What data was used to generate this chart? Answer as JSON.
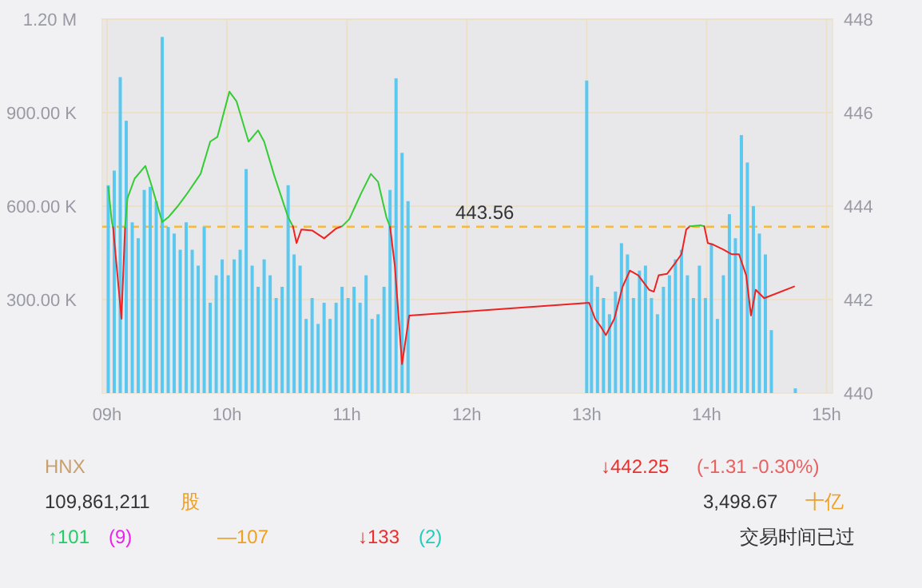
{
  "chart_data": {
    "type": "bar",
    "xlim": [
      8.96,
      15.05
    ],
    "xticks": [
      {
        "value": 9,
        "label": "09h"
      },
      {
        "value": 10,
        "label": "10h"
      },
      {
        "value": 11,
        "label": "11h"
      },
      {
        "value": 12,
        "label": "12h"
      },
      {
        "value": 13,
        "label": "13h"
      },
      {
        "value": 14,
        "label": "14h"
      },
      {
        "value": 15,
        "label": "15h"
      }
    ],
    "ylim": [
      0,
      1200000
    ],
    "yticks": [
      {
        "value": 300000,
        "label": "300.00 K"
      },
      {
        "value": 600000,
        "label": "600.00 K"
      },
      {
        "value": 900000,
        "label": "900.00 K"
      },
      {
        "value": 1200000,
        "label": "1.20 M"
      }
    ],
    "y2lim": [
      440,
      448
    ],
    "y2ticks": [
      440,
      442,
      444,
      446,
      448
    ],
    "grid": true,
    "series": [
      {
        "axis": "y",
        "color": "#5bc8f0",
        "x": [
          9.01,
          9.06,
          9.11,
          9.16,
          9.21,
          9.26,
          9.31,
          9.36,
          9.41,
          9.46,
          9.51,
          9.56,
          9.61,
          9.66,
          9.71,
          9.76,
          9.81,
          9.86,
          9.91,
          9.96,
          10.01,
          10.06,
          10.11,
          10.16,
          10.21,
          10.26,
          10.31,
          10.36,
          10.41,
          10.46,
          10.51,
          10.56,
          10.61,
          10.66,
          10.71,
          10.76,
          10.81,
          10.86,
          10.91,
          10.96,
          11.01,
          11.06,
          11.11,
          11.16,
          11.21,
          11.26,
          11.31,
          11.36,
          11.41,
          11.46,
          11.51,
          13.0,
          13.04,
          13.09,
          13.14,
          13.19,
          13.24,
          13.29,
          13.34,
          13.39,
          13.44,
          13.49,
          13.54,
          13.59,
          13.64,
          13.69,
          13.74,
          13.79,
          13.84,
          13.89,
          13.94,
          13.99,
          14.04,
          14.09,
          14.14,
          14.19,
          14.24,
          14.29,
          14.34,
          14.39,
          14.44,
          14.49,
          14.54,
          14.74
        ],
        "values": [
          667000,
          714000,
          1014000,
          874000,
          548000,
          497000,
          652000,
          662000,
          616000,
          1143000,
          533000,
          512000,
          460000,
          548000,
          460000,
          409000,
          533000,
          290000,
          378000,
          429000,
          378000,
          429000,
          460000,
          719000,
          409000,
          341000,
          429000,
          378000,
          305000,
          341000,
          667000,
          445000,
          409000,
          238000,
          305000,
          222000,
          290000,
          238000,
          290000,
          341000,
          305000,
          341000,
          290000,
          378000,
          238000,
          253000,
          341000,
          652000,
          1010000,
          771000,
          616000,
          1003000,
          378000,
          341000,
          305000,
          253000,
          326000,
          481000,
          445000,
          305000,
          393000,
          409000,
          305000,
          253000,
          341000,
          378000,
          429000,
          460000,
          378000,
          305000,
          409000,
          305000,
          481000,
          238000,
          378000,
          574000,
          497000,
          828000,
          740000,
          600000,
          512000,
          445000,
          202000,
          15000
        ]
      },
      {
        "type": "line",
        "axis": "y2",
        "color": "#33cc33",
        "x": [
          9.01,
          9.04,
          9.05
        ],
        "values": [
          444.41,
          443.66,
          443.55
        ]
      },
      {
        "type": "line",
        "axis": "y2",
        "color": "#ee2222",
        "x": [
          9.05,
          9.12,
          9.15
        ],
        "values": [
          443.55,
          441.59,
          443.55
        ]
      },
      {
        "type": "line",
        "axis": "y2",
        "color": "#33cc33",
        "x": [
          9.15,
          9.17,
          9.23,
          9.32,
          9.37,
          9.41,
          9.46,
          9.51,
          9.59,
          9.66,
          9.78,
          9.86,
          9.92,
          10.02,
          10.08,
          10.18,
          10.26,
          10.31,
          10.39,
          10.51,
          10.55
        ],
        "values": [
          443.55,
          444.17,
          444.59,
          444.86,
          444.45,
          444.1,
          443.66,
          443.76,
          444.0,
          444.24,
          444.69,
          445.38,
          445.48,
          446.45,
          446.24,
          445.38,
          445.62,
          445.38,
          444.69,
          443.76,
          443.57
        ]
      },
      {
        "type": "line",
        "axis": "y2",
        "color": "#ee2222",
        "x": [
          10.55,
          10.58,
          10.62,
          10.71,
          10.81,
          10.91,
          10.96
        ],
        "values": [
          443.57,
          443.21,
          443.5,
          443.48,
          443.31,
          443.52,
          443.57
        ]
      },
      {
        "type": "line",
        "axis": "y2",
        "color": "#33cc33",
        "x": [
          10.96,
          11.02,
          11.12,
          11.2,
          11.26,
          11.33,
          11.36
        ],
        "values": [
          443.57,
          443.72,
          444.28,
          444.69,
          444.52,
          443.76,
          443.56
        ]
      },
      {
        "type": "line",
        "axis": "y2",
        "color": "#ee2222",
        "x": [
          11.36,
          11.4,
          11.46,
          11.52,
          13.02,
          13.07,
          13.12,
          13.16,
          13.23,
          13.3,
          13.36,
          13.43,
          13.52,
          13.56,
          13.6,
          13.67,
          13.74,
          13.79,
          13.83,
          13.86
        ],
        "values": [
          443.56,
          442.72,
          440.62,
          441.66,
          441.93,
          441.59,
          441.41,
          441.24,
          441.59,
          442.28,
          442.62,
          442.52,
          442.21,
          442.17,
          442.52,
          442.55,
          442.79,
          442.97,
          443.5,
          443.57
        ]
      },
      {
        "type": "line",
        "axis": "y2",
        "color": "#33cc33",
        "x": [
          13.86,
          13.95,
          13.98
        ],
        "values": [
          443.57,
          443.59,
          443.57
        ]
      },
      {
        "type": "line",
        "axis": "y2",
        "color": "#ee2222",
        "x": [
          13.98,
          14.01,
          14.06,
          14.14,
          14.21,
          14.27,
          14.33,
          14.37,
          14.41,
          14.48,
          14.73
        ],
        "values": [
          443.57,
          443.21,
          443.17,
          443.07,
          442.97,
          442.97,
          442.52,
          441.66,
          442.21,
          442.03,
          442.28
        ]
      }
    ],
    "ref_lines": [
      {
        "axis": "y2",
        "value": 443.56,
        "label": "443.56",
        "color": "#f5b942",
        "line_style": "dashed"
      }
    ],
    "annotations": [
      "HNX",
      "↓442.25",
      "(-1.31  -0.30%)",
      "109,861,211",
      "股",
      "3,498.67",
      "十亿",
      "↑101",
      "(9)",
      "—107",
      "↓133",
      "(2)",
      "交易时间已过"
    ]
  }
}
